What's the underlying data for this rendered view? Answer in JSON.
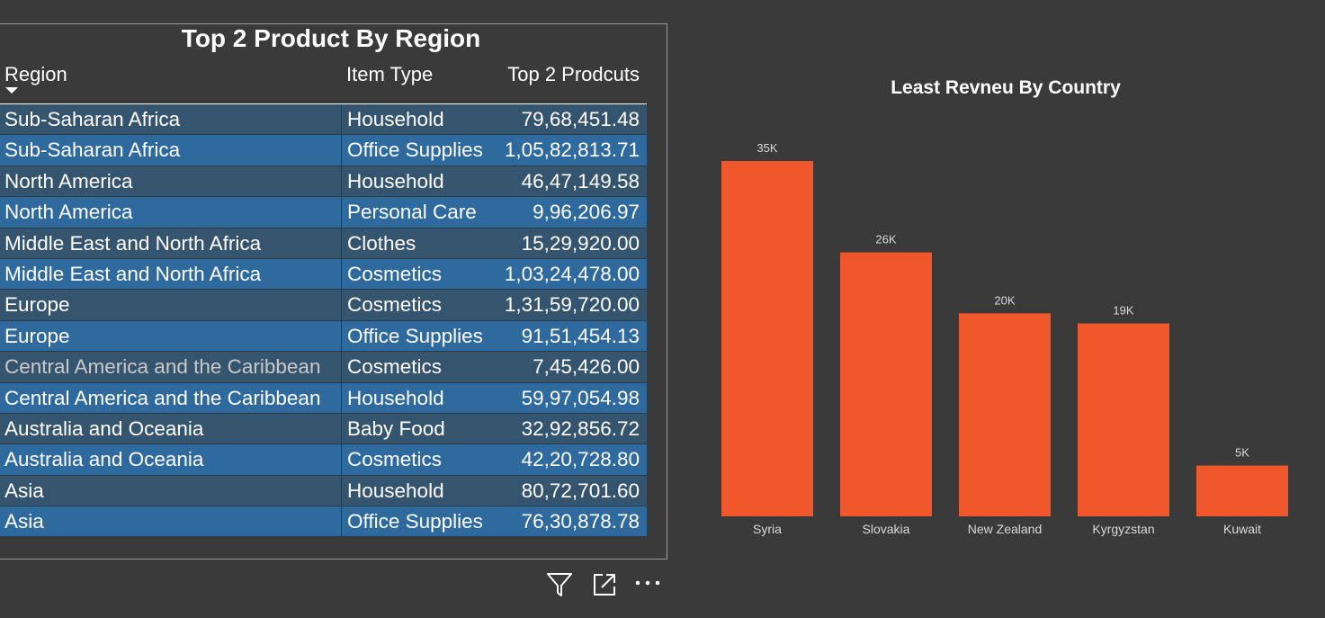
{
  "table": {
    "title": "Top 2 Product By Region",
    "columns": [
      "Region",
      "Item Type",
      "Top 2 Prodcuts"
    ],
    "rows": [
      {
        "region": "Sub-Saharan Africa",
        "item": "Household",
        "value": "79,68,451.48"
      },
      {
        "region": "Sub-Saharan Africa",
        "item": "Office Supplies",
        "value": "1,05,82,813.71"
      },
      {
        "region": "North America",
        "item": "Household",
        "value": "46,47,149.58"
      },
      {
        "region": "North America",
        "item": "Personal Care",
        "value": "9,96,206.97"
      },
      {
        "region": "Middle East and North Africa",
        "item": "Clothes",
        "value": "15,29,920.00"
      },
      {
        "region": "Middle East and North Africa",
        "item": "Cosmetics",
        "value": "1,03,24,478.00"
      },
      {
        "region": "Europe",
        "item": "Cosmetics",
        "value": "1,31,59,720.00"
      },
      {
        "region": "Europe",
        "item": "Office Supplies",
        "value": "91,51,454.13"
      },
      {
        "region": "Central America and the Caribbean",
        "item": "Cosmetics",
        "value": "7,45,426.00"
      },
      {
        "region": "Central America and the Caribbean",
        "item": "Household",
        "value": "59,97,054.98"
      },
      {
        "region": "Australia and Oceania",
        "item": "Baby Food",
        "value": "32,92,856.72"
      },
      {
        "region": "Australia and Oceania",
        "item": "Cosmetics",
        "value": "42,20,728.80"
      },
      {
        "region": "Asia",
        "item": "Household",
        "value": "80,72,701.60"
      },
      {
        "region": "Asia",
        "item": "Office Supplies",
        "value": "76,30,878.78"
      }
    ],
    "sort_icon": "sort-descending-icon",
    "colors": {
      "row_odd": "#35556f",
      "row_even": "#2f6a9e"
    }
  },
  "toolbar": {
    "icons": [
      "filter-icon",
      "focus-mode-icon",
      "more-options-icon"
    ]
  },
  "chart_data": {
    "type": "bar",
    "title": "Least Revneu By Country",
    "categories": [
      "Syria",
      "Slovakia",
      "New Zealand",
      "Kyrgyzstan",
      "Kuwait"
    ],
    "values": [
      35000,
      26000,
      20000,
      19000,
      5000
    ],
    "data_labels": [
      "35K",
      "26K",
      "20K",
      "19K",
      "5K"
    ],
    "xlabel": "",
    "ylabel": "",
    "ylim": [
      0,
      35000
    ],
    "grid": false,
    "bar_color": "#f0572a"
  }
}
